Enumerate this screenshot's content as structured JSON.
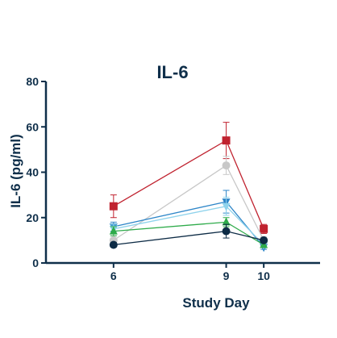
{
  "chart_data": {
    "type": "line",
    "title": "IL-6",
    "xlabel": "Study Day",
    "ylabel": "IL-6 (pg/ml)",
    "x": [
      6,
      9,
      10
    ],
    "x_tick_labels": [
      "6",
      "9",
      "10"
    ],
    "xlim": [
      4.2,
      11.5
    ],
    "ylim": [
      0,
      80
    ],
    "y_ticks": [
      0,
      20,
      40,
      60,
      80
    ],
    "y_tick_labels": [
      "0",
      "20",
      "40",
      "60",
      "80"
    ],
    "grid": false,
    "legend": "none",
    "series": [
      {
        "color": "#c0222f",
        "marker": "square",
        "values": [
          25,
          54,
          15
        ],
        "errors": [
          5,
          8,
          2
        ]
      },
      {
        "color": "#c8c8c8",
        "marker": "circle",
        "values": [
          10,
          43,
          10
        ],
        "errors": [
          2,
          4,
          1.5
        ]
      },
      {
        "color": "#2e86c8",
        "marker": "triangle-down",
        "values": [
          16,
          27,
          7
        ],
        "errors": [
          2,
          5,
          1
        ]
      },
      {
        "color": "#8fd3ec",
        "marker": "triangle-down",
        "values": [
          15,
          25,
          8
        ],
        "errors": [
          2,
          4,
          1
        ]
      },
      {
        "color": "#2eab4a",
        "marker": "triangle-up",
        "values": [
          14,
          18,
          8
        ],
        "errors": [
          2,
          2,
          1
        ]
      },
      {
        "color": "#0d2b45",
        "marker": "circle",
        "values": [
          8,
          14,
          10
        ],
        "errors": [
          1,
          3,
          1
        ]
      }
    ]
  }
}
